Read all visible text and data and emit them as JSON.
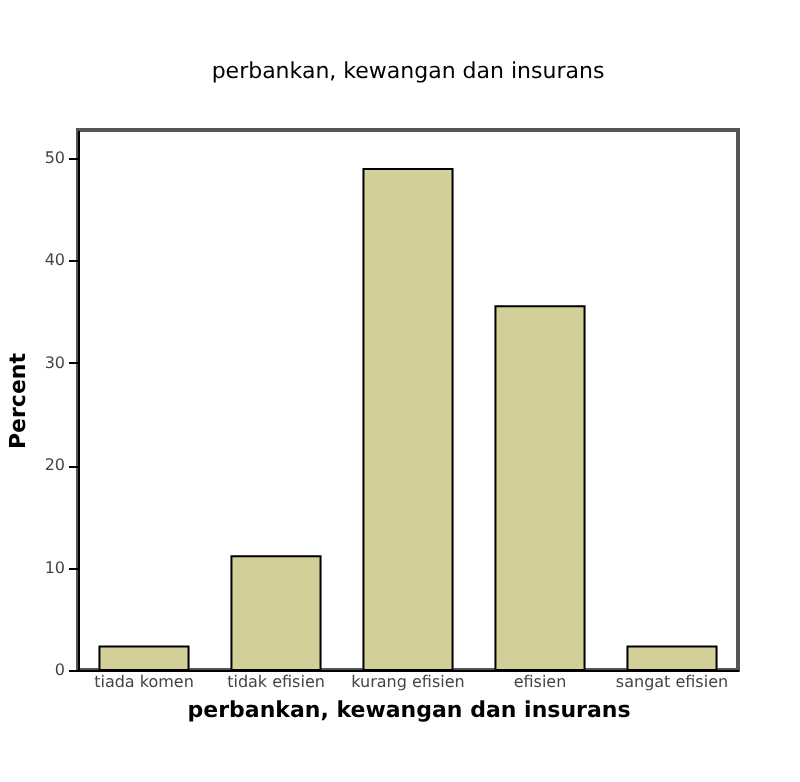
{
  "chart_data": {
    "type": "bar",
    "title": "perbankan, kewangan dan insurans",
    "xlabel": "perbankan, kewangan dan insurans",
    "ylabel": "Percent",
    "categories": [
      "tiada komen",
      "tidak efisien",
      "kurang efisien",
      "efisien",
      "sangat efisien"
    ],
    "values": [
      2.3,
      11.1,
      48.9,
      35.5,
      2.3
    ],
    "color": "#d3cf99",
    "ylim": [
      0,
      52.7
    ],
    "yticks": [
      0,
      10,
      20,
      30,
      40,
      50
    ],
    "grid": false
  }
}
